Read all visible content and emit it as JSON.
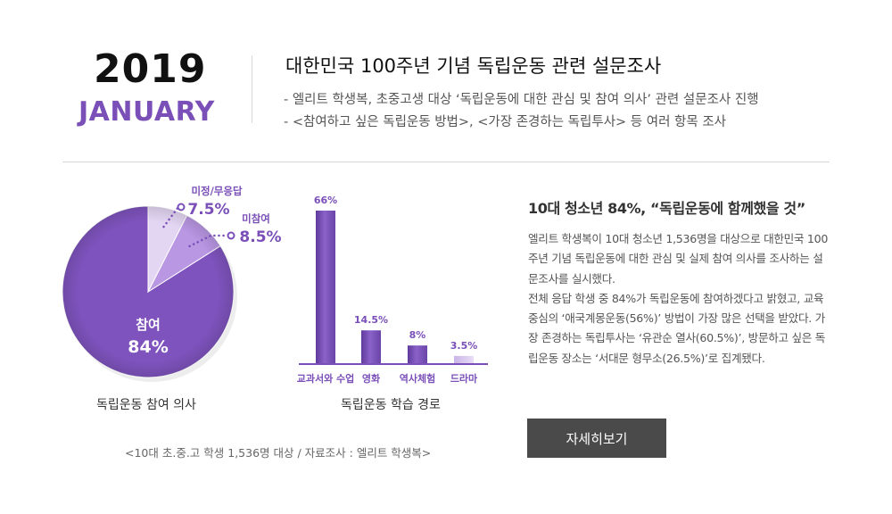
{
  "header": {
    "year": "2019",
    "month": "JANUARY",
    "title": "대한민국 100주년 기념 독립운동 관련 설문조사",
    "bullets": [
      "- 엘리트 학생복, 초중고생 대상 ‘독립운동에 대한 관심 및 참여 의사’ 관련 설문조사 진행",
      "- <참여하고 싶은 독립운동 방법>, <가장 존경하는 독립투사> 등 여러 항목 조사"
    ]
  },
  "colors": {
    "accent": "#7a4fb8",
    "pie_main": "#7e53bd",
    "pie_light": "#e3d6f3",
    "pie_mid": "#b997e3",
    "button": "#4a4a4a"
  },
  "chart_data": [
    {
      "type": "pie",
      "title": "독립운동 참여 의사",
      "slices": [
        {
          "label": "참여",
          "value": 84,
          "display": "84%"
        },
        {
          "label": "미정/무응답",
          "value": 7.5,
          "display": "7.5%"
        },
        {
          "label": "미참여",
          "value": 8.5,
          "display": "8.5%"
        }
      ]
    },
    {
      "type": "bar",
      "title": "독립운동 학습 경로",
      "categories": [
        "교과서와 수업",
        "영화",
        "역사체험",
        "드라마"
      ],
      "values": [
        66,
        14.5,
        8,
        3.5
      ],
      "value_labels": [
        "66%",
        "14.5%",
        "8%",
        "3.5%"
      ],
      "ylim": [
        0,
        66
      ]
    }
  ],
  "source_note": "<10대 초.중.고 학생 1,536명 대상 / 자료조사 : 엘리트 학생복>",
  "article": {
    "headline": "10대 청소년 84%, “독립운동에 함께했을 것”",
    "paragraphs": [
      "엘리트 학생복이 10대 청소년 1,536명을 대상으로 대한민국 100주년 기념 독립운동에 대한 관심 및 실제 참여 의사를 조사하는 설문조사를 실시했다.",
      "전체 응답 학생 중 84%가 독립운동에 참여하겠다고 밝혔고, 교육 중심의 ‘애국계몽운동(56%)’ 방법이 가장 많은 선택을 받았다. 가장 존경하는 독립투사는 ‘유관순 열사(60.5%)’, 방문하고 싶은 독립운동 장소는 ‘서대문 형무소(26.5%)’로 집계됐다."
    ],
    "button_label": "자세히보기"
  }
}
